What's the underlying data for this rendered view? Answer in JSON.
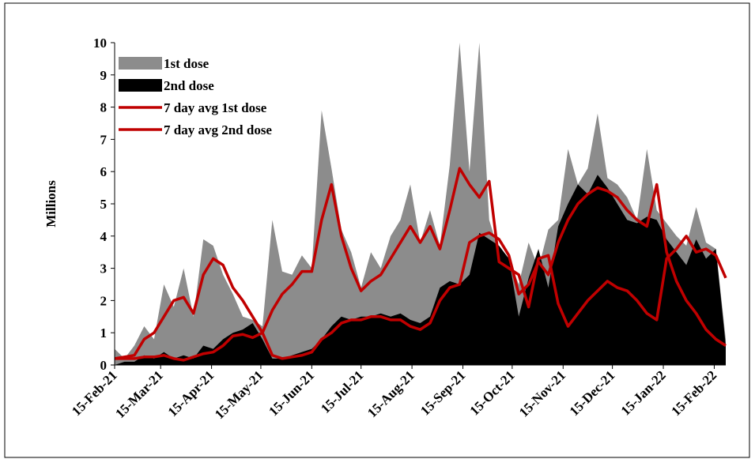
{
  "chart_data": {
    "type": "area-line",
    "y_label": "Millions",
    "x": [
      0,
      6,
      12,
      18,
      24,
      30,
      36,
      42,
      48,
      54,
      60,
      66,
      72,
      78,
      84,
      90,
      96,
      102,
      108,
      114,
      120,
      126,
      132,
      138,
      144,
      150,
      156,
      162,
      168,
      174,
      180,
      186,
      192,
      198,
      204,
      210,
      216,
      222,
      228,
      234,
      240,
      246,
      252,
      258,
      264,
      270,
      276,
      282,
      288,
      294,
      300,
      306,
      312,
      318,
      324,
      330,
      336,
      342,
      348,
      354,
      360,
      366,
      372
    ],
    "series": [
      {
        "name": "1st dose",
        "kind": "area",
        "color": "#8c8c8c",
        "values": [
          0.5,
          0.2,
          0.6,
          1.2,
          0.8,
          2.5,
          1.8,
          3.0,
          1.5,
          3.9,
          3.7,
          2.8,
          2.2,
          1.5,
          1.4,
          1.2,
          4.5,
          2.9,
          2.8,
          3.4,
          3.0,
          7.9,
          6.1,
          4.2,
          3.5,
          2.4,
          3.5,
          3.0,
          4.0,
          4.5,
          5.6,
          3.8,
          4.8,
          3.7,
          6.2,
          10,
          6.0,
          10,
          4.5,
          3.5,
          3.3,
          2.5,
          3.8,
          3.0,
          4.2,
          4.5,
          6.7,
          5.6,
          6.1,
          7.8,
          5.8,
          5.6,
          5.2,
          4.5,
          6.7,
          4.8,
          4.4,
          4.0,
          3.7,
          4.9,
          3.8,
          3.6,
          0.8
        ]
      },
      {
        "name": "2nd dose",
        "kind": "area",
        "color": "#000000",
        "values": [
          0,
          0.1,
          0.1,
          0.3,
          0.2,
          0.4,
          0.2,
          0.3,
          0.2,
          0.6,
          0.5,
          0.8,
          1.0,
          1.1,
          1.3,
          0.8,
          0.2,
          0.2,
          0.3,
          0.4,
          0.5,
          0.8,
          1.2,
          1.5,
          1.4,
          1.5,
          1.5,
          1.6,
          1.5,
          1.6,
          1.4,
          1.3,
          1.5,
          2.4,
          2.6,
          2.5,
          2.8,
          4.1,
          3.9,
          3.7,
          3.3,
          1.5,
          2.7,
          3.6,
          2.4,
          4.3,
          5.0,
          5.6,
          5.3,
          5.9,
          5.5,
          5.0,
          4.5,
          4.4,
          4.6,
          4.5,
          3.9,
          3.5,
          3.1,
          3.9,
          3.3,
          3.6,
          0.6
        ]
      },
      {
        "name": "7 day avg 1st dose",
        "kind": "line",
        "color": "#c00000",
        "values": [
          0.2,
          0.25,
          0.3,
          0.8,
          1.0,
          1.5,
          2.0,
          2.1,
          1.6,
          2.8,
          3.3,
          3.1,
          2.4,
          2.0,
          1.5,
          1.0,
          1.7,
          2.2,
          2.5,
          2.9,
          2.9,
          4.5,
          5.6,
          4.0,
          3.0,
          2.3,
          2.6,
          2.8,
          3.3,
          3.8,
          4.3,
          3.8,
          4.3,
          3.6,
          4.8,
          6.1,
          5.6,
          5.2,
          5.7,
          3.2,
          3.0,
          2.8,
          1.8,
          3.3,
          3.4,
          1.9,
          1.2,
          1.6,
          2.0,
          2.3,
          2.6,
          2.4,
          2.3,
          2.0,
          1.6,
          1.4,
          3.3,
          3.6,
          4.0,
          3.5,
          3.6,
          3.4,
          2.7
        ]
      },
      {
        "name": "7 day avg 2nd dose",
        "kind": "line",
        "color": "#c00000",
        "values": [
          0.2,
          0.2,
          0.2,
          0.25,
          0.25,
          0.3,
          0.2,
          0.15,
          0.25,
          0.35,
          0.4,
          0.6,
          0.9,
          0.95,
          0.85,
          1.0,
          0.3,
          0.2,
          0.25,
          0.3,
          0.4,
          0.8,
          1.0,
          1.3,
          1.4,
          1.4,
          1.5,
          1.5,
          1.4,
          1.4,
          1.2,
          1.1,
          1.3,
          2.0,
          2.4,
          2.5,
          3.8,
          4.0,
          4.1,
          3.9,
          3.4,
          2.2,
          2.5,
          3.2,
          2.8,
          3.8,
          4.5,
          5.0,
          5.3,
          5.5,
          5.4,
          5.2,
          4.8,
          4.5,
          4.3,
          5.6,
          3.5,
          2.6,
          2.0,
          1.6,
          1.1,
          0.8,
          0.6
        ]
      }
    ],
    "xlim": [
      0,
      372
    ],
    "xticks": [
      {
        "value": 0,
        "label": "15-Feb-21"
      },
      {
        "value": 28,
        "label": "15-Mar-21"
      },
      {
        "value": 59,
        "label": "15-Apr-21"
      },
      {
        "value": 89,
        "label": "15-May-21"
      },
      {
        "value": 120,
        "label": "15-Jun-21"
      },
      {
        "value": 150,
        "label": "15-Jul-21"
      },
      {
        "value": 181,
        "label": "15-Aug-21"
      },
      {
        "value": 212,
        "label": "15-Sep-21"
      },
      {
        "value": 242,
        "label": "15-Oct-21"
      },
      {
        "value": 273,
        "label": "15-Nov-21"
      },
      {
        "value": 303,
        "label": "15-Dec-21"
      },
      {
        "value": 334,
        "label": "15-Jan-22"
      },
      {
        "value": 365,
        "label": "15-Feb-22"
      }
    ],
    "ylim": [
      0,
      10
    ],
    "yticks": [
      0,
      1,
      2,
      3,
      4,
      5,
      6,
      7,
      8,
      9,
      10
    ],
    "grid": false,
    "legend": "upper-left"
  }
}
